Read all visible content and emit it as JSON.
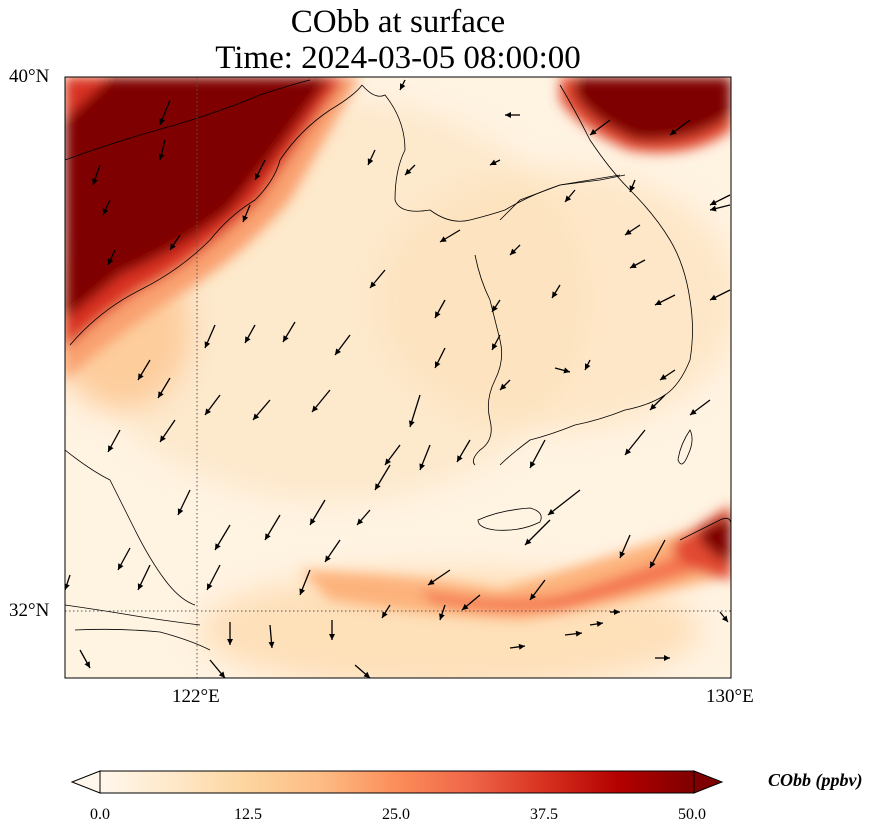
{
  "title": {
    "line1": "CObb at surface",
    "line2": "Time: 2024-03-05 08:00:00"
  },
  "axes": {
    "lat_ticks": [
      {
        "label": "40°N",
        "value": 40
      },
      {
        "label": "32°N",
        "value": 32
      }
    ],
    "lon_ticks": [
      {
        "label": "122°E",
        "value": 122
      },
      {
        "label": "130°E",
        "value": 130
      }
    ],
    "lon_range": [
      120,
      130
    ],
    "lat_range": [
      31,
      40
    ],
    "gridlines": "dotted at 122°E and 32°N"
  },
  "colorbar": {
    "label": "CObb (ppbv)",
    "ticks": [
      "0.0",
      "12.5",
      "25.0",
      "37.5",
      "50.0"
    ],
    "range": [
      0,
      50
    ],
    "colormap": "OrRd",
    "extend": "both",
    "colors": [
      "#fff7ec",
      "#fee8c8",
      "#fdd49e",
      "#fdbb84",
      "#fc8d59",
      "#ef6548",
      "#d7301f",
      "#b30000",
      "#7f0000"
    ]
  },
  "map_data": {
    "field": "CObb surface concentration",
    "high_regions": [
      {
        "name": "northwest plume (Shandong / North China)",
        "level": "above 50 ppbv"
      },
      {
        "name": "northeast (North Korea / Manchuria)",
        "level": "above 50 ppbv"
      },
      {
        "name": "southeast near Kyushu",
        "level": "above 50 ppbv"
      },
      {
        "name": "band along ~32°N over East China Sea",
        "level": "25-37.5 ppbv"
      }
    ],
    "wind_vectors": "black quiver arrows, mostly from northeast toward southwest"
  }
}
